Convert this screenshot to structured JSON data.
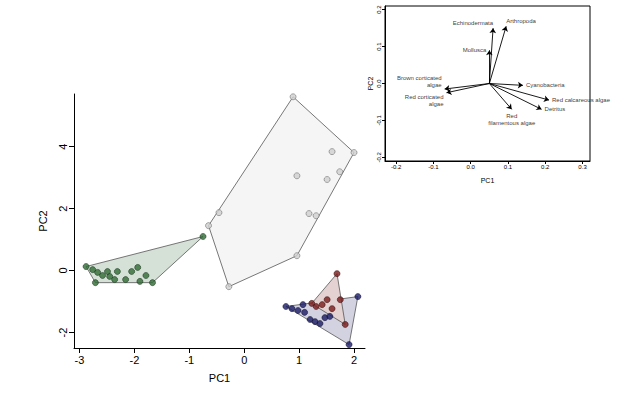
{
  "chart_data": [
    {
      "type": "scatter",
      "xlabel": "PC1",
      "ylabel": "PC2",
      "xlim": [
        -3.1,
        2.2
      ],
      "ylim": [
        -2.5,
        5.7
      ],
      "xticks": [
        -3,
        -2,
        -1,
        0,
        1,
        2
      ],
      "yticks": [
        -2,
        0,
        2,
        4
      ],
      "grid": false,
      "series": [
        {
          "color": "#cfcfcf",
          "marker": "circle",
          "x": [
            0.89,
            2.0,
            1.6,
            1.74,
            1.51,
            0.96,
            1.18,
            1.31,
            0.96,
            -0.46,
            -0.28,
            -0.65
          ],
          "values": [
            5.61,
            3.81,
            3.84,
            3.19,
            2.94,
            3.06,
            1.84,
            1.77,
            0.48,
            1.87,
            -0.52,
            1.45
          ]
        },
        {
          "color": "#2f6b35",
          "marker": "circle",
          "x": [
            -0.75,
            -2.88,
            -2.76,
            -2.67,
            -2.58,
            -2.45,
            -2.31,
            -2.16,
            -2.05,
            -1.94,
            -1.9,
            -1.79,
            -1.67,
            -2.71,
            -2.49,
            -2.36
          ],
          "values": [
            1.1,
            0.13,
            0.03,
            -0.06,
            -0.16,
            -0.19,
            -0.03,
            -0.29,
            -0.03,
            0.1,
            -0.35,
            -0.16,
            -0.39,
            -0.39,
            -0.03,
            -0.29
          ]
        },
        {
          "color": "#1c1c66",
          "marker": "circle",
          "x": [
            0.76,
            0.87,
            0.98,
            1.1,
            1.2,
            1.29,
            1.38,
            1.47,
            1.56,
            1.07,
            1.91,
            2.07
          ],
          "values": [
            -1.16,
            -1.23,
            -1.29,
            -1.35,
            -1.58,
            -1.65,
            -1.71,
            -1.52,
            -1.48,
            -1.1,
            -2.39,
            -0.84
          ]
        },
        {
          "color": "#7a1a1a",
          "marker": "circle",
          "x": [
            1.69,
            1.51,
            1.42,
            1.6,
            1.31,
            1.75,
            1.84,
            1.23
          ],
          "values": [
            -0.1,
            -0.94,
            -1.1,
            -1.23,
            -1.16,
            -0.94,
            -1.74,
            -1.06
          ]
        }
      ]
    },
    {
      "type": "biplot",
      "xlabel": "PC1",
      "ylabel": "PC2",
      "xlim": [
        -0.23,
        0.32
      ],
      "ylim": [
        -0.21,
        0.21
      ],
      "xticks": [
        -0.2,
        -0.1,
        {
          "value": 0,
          "label": "0.0"
        },
        0.1,
        0.2,
        0.3
      ],
      "yticks": [
        -0.2,
        -0.1,
        {
          "value": 0,
          "label": "0.0"
        },
        0.1,
        0.2
      ],
      "grid": false,
      "origin": [
        0.05,
        0
      ],
      "arrows": [
        {
          "label": "Echinodermata",
          "x": 0.06,
          "y": 0.15
        },
        {
          "label": "Arthropoda",
          "x": 0.095,
          "y": 0.155
        },
        {
          "label": "Mollusca",
          "x": 0.05,
          "y": 0.09
        },
        {
          "label": "Cyanobacteria",
          "x": 0.14,
          "y": -0.005
        },
        {
          "label": "Red calcareous algae",
          "x": 0.21,
          "y": -0.045
        },
        {
          "label": "Detritus",
          "x": 0.19,
          "y": -0.07
        },
        {
          "label": "Red\nfilamentous algae",
          "x": 0.11,
          "y": -0.07
        },
        {
          "label": "Brown corticated\nalgae",
          "x": -0.07,
          "y": -0.015
        },
        {
          "label": "Red corticated\nalgae",
          "x": -0.065,
          "y": -0.025
        }
      ]
    }
  ]
}
